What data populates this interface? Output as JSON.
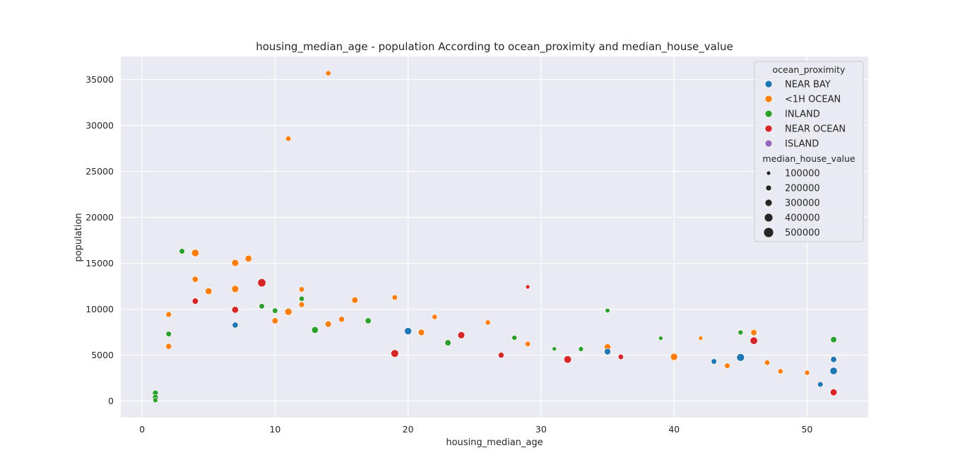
{
  "chart_data": {
    "type": "scatter",
    "title": "housing_median_age - population According to ocean_proximity and median_house_value",
    "xlabel": "housing_median_age",
    "ylabel": "population",
    "xlim": [
      -1.6,
      54.6
    ],
    "ylim": [
      -1800,
      37500
    ],
    "xticks": [
      "0",
      "10",
      "20",
      "30",
      "40",
      "50"
    ],
    "yticks": [
      "0",
      "5000",
      "10000",
      "15000",
      "20000",
      "25000",
      "30000",
      "35000"
    ],
    "grid": true,
    "background": "#eaeaf2",
    "legend": {
      "placement": "top-right",
      "hue_title": "ocean_proximity",
      "hue_entries": [
        {
          "name": "NEAR BAY",
          "color": "#1f77b4"
        },
        {
          "name": "<1H OCEAN",
          "color": "#ff7f0e"
        },
        {
          "name": "INLAND",
          "color": "#2ca02c"
        },
        {
          "name": "NEAR OCEAN",
          "color": "#d62728"
        },
        {
          "name": "ISLAND",
          "color": "#9467bd"
        }
      ],
      "size_title": "median_house_value",
      "size_entries": [
        "100000",
        "200000",
        "300000",
        "400000",
        "500000"
      ]
    },
    "points": [
      {
        "x": 14,
        "y": 35682,
        "cat": "<1H OCEAN",
        "v": 130000
      },
      {
        "x": 11,
        "y": 28566,
        "cat": "<1H OCEAN",
        "v": 140000
      },
      {
        "x": 3,
        "y": 16305,
        "cat": "INLAND",
        "v": 160000
      },
      {
        "x": 4,
        "y": 16122,
        "cat": "<1H OCEAN",
        "v": 290000
      },
      {
        "x": 8,
        "y": 15507,
        "cat": "<1H OCEAN",
        "v": 250000
      },
      {
        "x": 7,
        "y": 15037,
        "cat": "<1H OCEAN",
        "v": 260000
      },
      {
        "x": 4,
        "y": 13251,
        "cat": "<1H OCEAN",
        "v": 190000
      },
      {
        "x": 9,
        "y": 12873,
        "cat": "NEAR OCEAN",
        "v": 350000
      },
      {
        "x": 29,
        "y": 12427,
        "cat": "NEAR OCEAN",
        "v": 50000
      },
      {
        "x": 7,
        "y": 12203,
        "cat": "<1H OCEAN",
        "v": 270000
      },
      {
        "x": 12,
        "y": 12153,
        "cat": "<1H OCEAN",
        "v": 140000
      },
      {
        "x": 5,
        "y": 11956,
        "cat": "<1H OCEAN",
        "v": 240000
      },
      {
        "x": 19,
        "y": 11272,
        "cat": "<1H OCEAN",
        "v": 150000
      },
      {
        "x": 12,
        "y": 11139,
        "cat": "INLAND",
        "v": 130000
      },
      {
        "x": 16,
        "y": 10988,
        "cat": "<1H OCEAN",
        "v": 210000
      },
      {
        "x": 4,
        "y": 10877,
        "cat": "NEAR OCEAN",
        "v": 200000
      },
      {
        "x": 12,
        "y": 10493,
        "cat": "<1H OCEAN",
        "v": 160000
      },
      {
        "x": 9,
        "y": 10323,
        "cat": "INLAND",
        "v": 150000
      },
      {
        "x": 7,
        "y": 9936,
        "cat": "NEAR OCEAN",
        "v": 240000
      },
      {
        "x": 35,
        "y": 9851,
        "cat": "INLAND",
        "v": 90000
      },
      {
        "x": 10,
        "y": 9830,
        "cat": "INLAND",
        "v": 150000
      },
      {
        "x": 11,
        "y": 9715,
        "cat": "<1H OCEAN",
        "v": 280000
      },
      {
        "x": 2,
        "y": 9427,
        "cat": "<1H OCEAN",
        "v": 160000
      },
      {
        "x": 22,
        "y": 9160,
        "cat": "<1H OCEAN",
        "v": 130000
      },
      {
        "x": 15,
        "y": 8901,
        "cat": "<1H OCEAN",
        "v": 170000
      },
      {
        "x": 10,
        "y": 8733,
        "cat": "<1H OCEAN",
        "v": 200000
      },
      {
        "x": 17,
        "y": 8733,
        "cat": "INLAND",
        "v": 190000
      },
      {
        "x": 26,
        "y": 8552,
        "cat": "<1H OCEAN",
        "v": 130000
      },
      {
        "x": 14,
        "y": 8371,
        "cat": "<1H OCEAN",
        "v": 210000
      },
      {
        "x": 7,
        "y": 8268,
        "cat": "NEAR BAY",
        "v": 180000
      },
      {
        "x": 13,
        "y": 7739,
        "cat": "INLAND",
        "v": 240000
      },
      {
        "x": 20,
        "y": 7610,
        "cat": "NEAR BAY",
        "v": 280000
      },
      {
        "x": 21,
        "y": 7468,
        "cat": "<1H OCEAN",
        "v": 220000
      },
      {
        "x": 45,
        "y": 7468,
        "cat": "INLAND",
        "v": 110000
      },
      {
        "x": 46,
        "y": 7455,
        "cat": "<1H OCEAN",
        "v": 200000
      },
      {
        "x": 2,
        "y": 7300,
        "cat": "INLAND",
        "v": 150000
      },
      {
        "x": 24,
        "y": 7170,
        "cat": "NEAR OCEAN",
        "v": 260000
      },
      {
        "x": 28,
        "y": 6890,
        "cat": "INLAND",
        "v": 120000
      },
      {
        "x": 39,
        "y": 6840,
        "cat": "INLAND",
        "v": 60000
      },
      {
        "x": 42,
        "y": 6840,
        "cat": "<1H OCEAN",
        "v": 60000
      },
      {
        "x": 52,
        "y": 6690,
        "cat": "INLAND",
        "v": 200000
      },
      {
        "x": 46,
        "y": 6570,
        "cat": "NEAR OCEAN",
        "v": 300000
      },
      {
        "x": 23,
        "y": 6340,
        "cat": "INLAND",
        "v": 200000
      },
      {
        "x": 29,
        "y": 6210,
        "cat": "<1H OCEAN",
        "v": 140000
      },
      {
        "x": 35,
        "y": 5880,
        "cat": "<1H OCEAN",
        "v": 230000
      },
      {
        "x": 31,
        "y": 5680,
        "cat": "INLAND",
        "v": 60000
      },
      {
        "x": 33,
        "y": 5660,
        "cat": "INLAND",
        "v": 110000
      },
      {
        "x": 35,
        "y": 5380,
        "cat": "NEAR BAY",
        "v": 220000
      },
      {
        "x": 2,
        "y": 5950,
        "cat": "<1H OCEAN",
        "v": 180000
      },
      {
        "x": 40,
        "y": 4810,
        "cat": "<1H OCEAN",
        "v": 280000
      },
      {
        "x": 45,
        "y": 4750,
        "cat": "NEAR BAY",
        "v": 320000
      },
      {
        "x": 36,
        "y": 4810,
        "cat": "NEAR OCEAN",
        "v": 140000
      },
      {
        "x": 52,
        "y": 4530,
        "cat": "NEAR BAY",
        "v": 190000
      },
      {
        "x": 32,
        "y": 4530,
        "cat": "NEAR OCEAN",
        "v": 300000
      },
      {
        "x": 19,
        "y": 5180,
        "cat": "NEAR OCEAN",
        "v": 310000
      },
      {
        "x": 27,
        "y": 5000,
        "cat": "NEAR OCEAN",
        "v": 170000
      },
      {
        "x": 44,
        "y": 3840,
        "cat": "<1H OCEAN",
        "v": 150000
      },
      {
        "x": 47,
        "y": 4180,
        "cat": "<1H OCEAN",
        "v": 140000
      },
      {
        "x": 43,
        "y": 4310,
        "cat": "NEAR BAY",
        "v": 150000
      },
      {
        "x": 48,
        "y": 3240,
        "cat": "<1H OCEAN",
        "v": 130000
      },
      {
        "x": 50,
        "y": 3080,
        "cat": "<1H OCEAN",
        "v": 120000
      },
      {
        "x": 51,
        "y": 1810,
        "cat": "NEAR BAY",
        "v": 150000
      },
      {
        "x": 52,
        "y": 3280,
        "cat": "NEAR BAY",
        "v": 290000
      },
      {
        "x": 52,
        "y": 950,
        "cat": "NEAR OCEAN",
        "v": 250000
      },
      {
        "x": 1,
        "y": 880,
        "cat": "INLAND",
        "v": 160000
      },
      {
        "x": 1,
        "y": 400,
        "cat": "INLAND",
        "v": 170000
      },
      {
        "x": 1,
        "y": 100,
        "cat": "INLAND",
        "v": 110000
      }
    ]
  }
}
